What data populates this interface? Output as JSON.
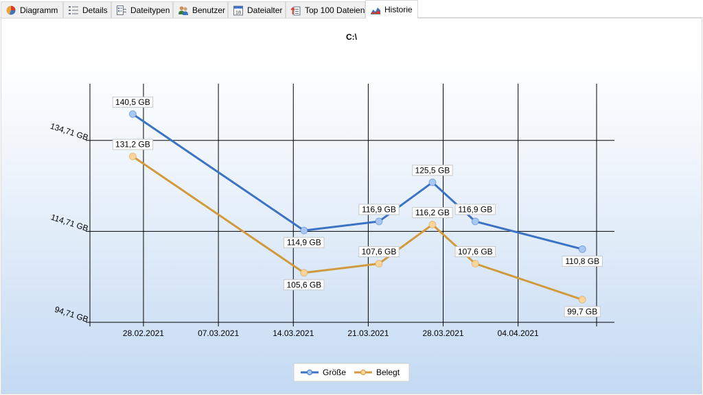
{
  "tabs": [
    {
      "label": "Diagramm",
      "icon": "pie-chart-icon",
      "active": false
    },
    {
      "label": "Details",
      "icon": "list-icon",
      "active": false
    },
    {
      "label": "Dateitypen",
      "icon": "filetypes-icon",
      "active": false
    },
    {
      "label": "Benutzer",
      "icon": "users-icon",
      "active": false
    },
    {
      "label": "Dateialter",
      "icon": "calendar-icon",
      "active": false
    },
    {
      "label": "Top 100 Dateien",
      "icon": "top-files-icon",
      "active": false
    },
    {
      "label": "Historie",
      "icon": "history-chart-icon",
      "active": true
    }
  ],
  "colors": {
    "series_groesse": "#3a72c4",
    "series_belegt": "#d19a3c",
    "marker_groesse": "#a8c8f4",
    "marker_belegt": "#fad49a"
  },
  "chart_data": {
    "type": "line",
    "title": "C:\\",
    "xlabel": "",
    "ylabel": "",
    "x_ticks": [
      "28.02.2021",
      "07.03.2021",
      "14.03.2021",
      "21.03.2021",
      "28.03.2021",
      "04.04.2021"
    ],
    "y_ticks": [
      "134,71 GB",
      "114,71 GB",
      "94,71 GB"
    ],
    "y_tick_values": [
      134.71,
      114.71,
      94.71
    ],
    "xlim": [
      "2021-02-23",
      "2021-04-13"
    ],
    "ylim": [
      94.71,
      147.2
    ],
    "grid": true,
    "legend_position": "bottom-center",
    "series": [
      {
        "name": "Größe",
        "points": [
          {
            "x": "2021-02-27",
            "y": 140.5,
            "label": "140,5 GB"
          },
          {
            "x": "2021-03-15",
            "y": 114.9,
            "label": "114,9 GB"
          },
          {
            "x": "2021-03-22",
            "y": 116.9,
            "label": "116,9 GB"
          },
          {
            "x": "2021-03-27",
            "y": 125.5,
            "label": "125,5 GB"
          },
          {
            "x": "2021-03-31",
            "y": 116.9,
            "label": "116,9 GB"
          },
          {
            "x": "2021-04-10",
            "y": 110.8,
            "label": "110,8 GB"
          }
        ]
      },
      {
        "name": "Belegt",
        "points": [
          {
            "x": "2021-02-27",
            "y": 131.2,
            "label": "131,2 GB"
          },
          {
            "x": "2021-03-15",
            "y": 105.6,
            "label": "105,6 GB"
          },
          {
            "x": "2021-03-22",
            "y": 107.6,
            "label": "107,6 GB"
          },
          {
            "x": "2021-03-27",
            "y": 116.2,
            "label": "116,2 GB"
          },
          {
            "x": "2021-03-31",
            "y": 107.6,
            "label": "107,6 GB"
          },
          {
            "x": "2021-04-10",
            "y": 99.7,
            "label": "99,7 GB"
          }
        ]
      }
    ]
  }
}
